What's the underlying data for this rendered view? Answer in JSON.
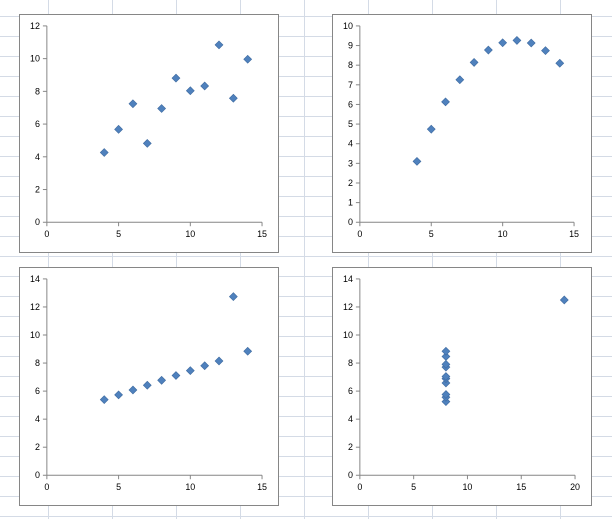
{
  "chart_data": [
    {
      "type": "scatter",
      "title": "",
      "xlabel": "",
      "ylabel": "",
      "xlim": [
        0,
        15
      ],
      "ylim": [
        0,
        12
      ],
      "x_ticks": [
        "0",
        "5",
        "10",
        "15"
      ],
      "y_ticks": [
        "0",
        "2",
        "4",
        "6",
        "8",
        "10",
        "12"
      ],
      "grid": false,
      "legend": "none",
      "marker": "diamond",
      "color": "#4f81bd",
      "points": [
        {
          "x": 4,
          "y": 4.26
        },
        {
          "x": 5,
          "y": 5.68
        },
        {
          "x": 6,
          "y": 7.24
        },
        {
          "x": 7,
          "y": 4.82
        },
        {
          "x": 8,
          "y": 6.95
        },
        {
          "x": 9,
          "y": 8.81
        },
        {
          "x": 10,
          "y": 8.04
        },
        {
          "x": 11,
          "y": 8.33
        },
        {
          "x": 12,
          "y": 10.84
        },
        {
          "x": 13,
          "y": 7.58
        },
        {
          "x": 14,
          "y": 9.96
        }
      ]
    },
    {
      "type": "scatter",
      "title": "",
      "xlabel": "",
      "ylabel": "",
      "xlim": [
        0,
        15
      ],
      "ylim": [
        0,
        10
      ],
      "x_ticks": [
        "0",
        "5",
        "10",
        "15"
      ],
      "y_ticks": [
        "0",
        "1",
        "2",
        "3",
        "4",
        "5",
        "6",
        "7",
        "8",
        "9",
        "10"
      ],
      "grid": false,
      "legend": "none",
      "marker": "diamond",
      "color": "#4f81bd",
      "points": [
        {
          "x": 4,
          "y": 3.1
        },
        {
          "x": 5,
          "y": 4.74
        },
        {
          "x": 6,
          "y": 6.13
        },
        {
          "x": 7,
          "y": 7.26
        },
        {
          "x": 8,
          "y": 8.14
        },
        {
          "x": 9,
          "y": 8.77
        },
        {
          "x": 10,
          "y": 9.14
        },
        {
          "x": 11,
          "y": 9.26
        },
        {
          "x": 12,
          "y": 9.13
        },
        {
          "x": 13,
          "y": 8.74
        },
        {
          "x": 14,
          "y": 8.1
        }
      ]
    },
    {
      "type": "scatter",
      "title": "",
      "xlabel": "",
      "ylabel": "",
      "xlim": [
        0,
        15
      ],
      "ylim": [
        0,
        14
      ],
      "x_ticks": [
        "0",
        "5",
        "10",
        "15"
      ],
      "y_ticks": [
        "0",
        "2",
        "4",
        "6",
        "8",
        "10",
        "12",
        "14"
      ],
      "grid": false,
      "legend": "none",
      "marker": "diamond",
      "color": "#4f81bd",
      "points": [
        {
          "x": 4,
          "y": 5.39
        },
        {
          "x": 5,
          "y": 5.73
        },
        {
          "x": 6,
          "y": 6.08
        },
        {
          "x": 7,
          "y": 6.42
        },
        {
          "x": 8,
          "y": 6.77
        },
        {
          "x": 9,
          "y": 7.11
        },
        {
          "x": 10,
          "y": 7.46
        },
        {
          "x": 11,
          "y": 7.81
        },
        {
          "x": 12,
          "y": 8.15
        },
        {
          "x": 13,
          "y": 12.74
        },
        {
          "x": 14,
          "y": 8.84
        }
      ]
    },
    {
      "type": "scatter",
      "title": "",
      "xlabel": "",
      "ylabel": "",
      "xlim": [
        0,
        20
      ],
      "ylim": [
        0,
        14
      ],
      "x_ticks": [
        "0",
        "5",
        "10",
        "15",
        "20"
      ],
      "y_ticks": [
        "0",
        "2",
        "4",
        "6",
        "8",
        "10",
        "12",
        "14"
      ],
      "grid": false,
      "legend": "none",
      "marker": "diamond",
      "color": "#4f81bd",
      "points": [
        {
          "x": 8,
          "y": 5.25
        },
        {
          "x": 8,
          "y": 5.56
        },
        {
          "x": 8,
          "y": 5.76
        },
        {
          "x": 8,
          "y": 6.58
        },
        {
          "x": 8,
          "y": 6.89
        },
        {
          "x": 8,
          "y": 7.04
        },
        {
          "x": 8,
          "y": 7.71
        },
        {
          "x": 8,
          "y": 7.91
        },
        {
          "x": 8,
          "y": 8.47
        },
        {
          "x": 8,
          "y": 8.84
        },
        {
          "x": 19,
          "y": 12.5
        }
      ]
    }
  ]
}
